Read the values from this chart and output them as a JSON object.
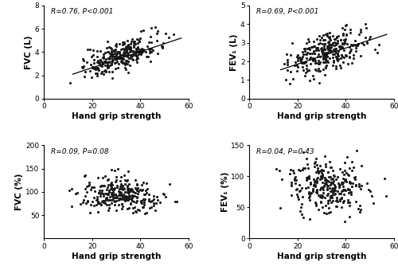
{
  "subplots": [
    {
      "ylabel": "FVC (L)",
      "xlabel": "Hand grip strength",
      "annotation": "R=0.76, P<0.001",
      "xlim": [
        0,
        60
      ],
      "ylim": [
        0,
        8
      ],
      "yticks": [
        0,
        2,
        4,
        6,
        8
      ],
      "xticks": [
        0,
        20,
        40,
        60
      ],
      "reg_x0": 12,
      "reg_y0": 2.1,
      "reg_x1": 57,
      "reg_y1": 5.2,
      "seed": 42,
      "n_points": 300,
      "mean_x": 32,
      "std_x": 8,
      "slope": 0.068,
      "intercept": 1.5,
      "noise_std": 0.62,
      "has_regression": true
    },
    {
      "ylabel": "FEV₁ (L)",
      "xlabel": "Hand grip strength",
      "annotation": "R=0.69, P<0.001",
      "xlim": [
        0,
        60
      ],
      "ylim": [
        0,
        5
      ],
      "yticks": [
        0,
        1,
        2,
        3,
        4,
        5
      ],
      "xticks": [
        0,
        20,
        40,
        60
      ],
      "reg_x0": 13,
      "reg_y0": 1.55,
      "reg_x1": 57,
      "reg_y1": 3.45,
      "seed": 43,
      "n_points": 300,
      "mean_x": 32,
      "std_x": 8,
      "slope": 0.043,
      "intercept": 1.16,
      "noise_std": 0.52,
      "has_regression": true
    },
    {
      "ylabel": "FVC (%)",
      "xlabel": "Hand grip strength",
      "annotation": "R=0.09, P=0.08",
      "xlim": [
        0,
        60
      ],
      "ylim": [
        0,
        200
      ],
      "yticks": [
        50,
        100,
        150,
        200
      ],
      "xticks": [
        0,
        20,
        40,
        60
      ],
      "seed": 44,
      "n_points": 300,
      "mean_x": 32,
      "std_x": 8,
      "slope": 0.0,
      "intercept": 95,
      "noise_std": 18,
      "has_regression": false
    },
    {
      "ylabel": "FEV₁ (%)",
      "xlabel": "Hand grip strength",
      "annotation": "R=0.04, P=0.43",
      "xlim": [
        0,
        60
      ],
      "ylim": [
        0,
        150
      ],
      "yticks": [
        0,
        50,
        100,
        150
      ],
      "xticks": [
        0,
        20,
        40,
        60
      ],
      "seed": 45,
      "n_points": 300,
      "mean_x": 32,
      "std_x": 8,
      "slope": 0.0,
      "intercept": 85,
      "noise_std": 20,
      "has_regression": false
    }
  ],
  "dot_color": "#1a1a1a",
  "dot_size": 5,
  "line_color": "#000000",
  "background_color": "#ffffff",
  "tick_fontsize": 6.5,
  "label_fontsize": 7.5,
  "annotation_fontsize": 6.5
}
